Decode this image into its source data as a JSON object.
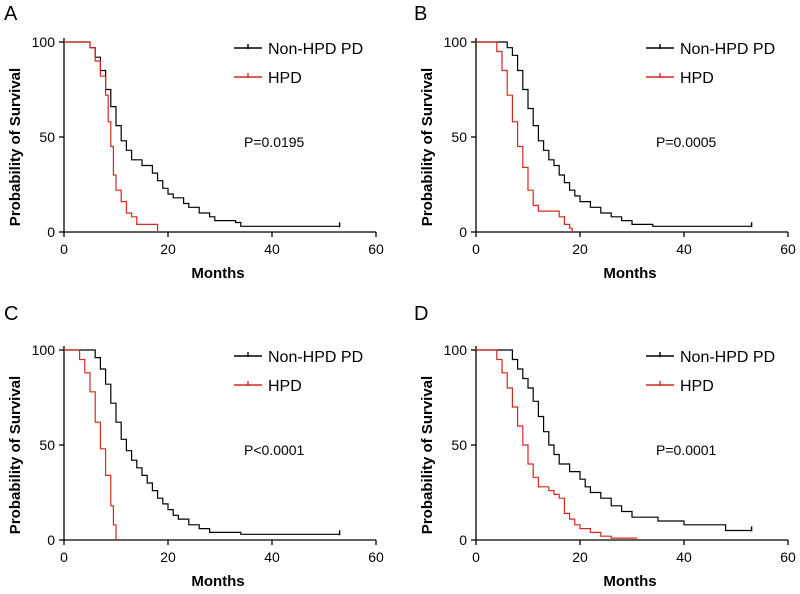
{
  "chart_data": [
    {
      "type": "line",
      "panel": "A",
      "title": "",
      "xlabel": "Months",
      "ylabel": "Probability of Survival",
      "xlim": [
        0,
        60
      ],
      "ylim": [
        0,
        100
      ],
      "xticks": [
        "0",
        "20",
        "40",
        "60"
      ],
      "yticks": [
        "0",
        "50",
        "100"
      ],
      "annotation": "P=0.0195",
      "legend_position": "top-right",
      "series": [
        {
          "name": "Non-HPD PD",
          "color": "#000000",
          "censor_end": true,
          "points": [
            [
              0,
              100
            ],
            [
              4,
              100
            ],
            [
              5,
              97
            ],
            [
              6,
              92
            ],
            [
              7,
              85
            ],
            [
              8,
              75
            ],
            [
              9,
              66
            ],
            [
              10,
              56
            ],
            [
              11,
              48
            ],
            [
              12,
              43
            ],
            [
              13,
              38
            ],
            [
              15,
              35
            ],
            [
              17,
              31
            ],
            [
              18,
              27
            ],
            [
              19,
              23
            ],
            [
              20,
              20
            ],
            [
              21,
              18
            ],
            [
              23,
              15
            ],
            [
              24,
              13
            ],
            [
              26,
              10
            ],
            [
              28,
              8
            ],
            [
              29,
              6
            ],
            [
              33,
              5
            ],
            [
              34,
              3
            ],
            [
              53,
              3
            ]
          ]
        },
        {
          "name": "HPD",
          "color": "#d42a20",
          "censor_end": false,
          "points": [
            [
              0,
              100
            ],
            [
              3,
              100
            ],
            [
              5,
              97
            ],
            [
              6,
              90
            ],
            [
              7,
              82
            ],
            [
              8,
              72
            ],
            [
              8.5,
              58
            ],
            [
              9,
              45
            ],
            [
              9.5,
              30
            ],
            [
              10,
              22
            ],
            [
              11,
              16
            ],
            [
              12,
              10
            ],
            [
              13,
              8
            ],
            [
              14,
              4
            ],
            [
              18,
              4
            ],
            [
              18,
              0
            ]
          ]
        }
      ]
    },
    {
      "type": "line",
      "panel": "B",
      "title": "",
      "xlabel": "Months",
      "ylabel": "Probability of Survival",
      "xlim": [
        0,
        60
      ],
      "ylim": [
        0,
        100
      ],
      "xticks": [
        "0",
        "20",
        "40",
        "60"
      ],
      "yticks": [
        "0",
        "50",
        "100"
      ],
      "annotation": "P=0.0005",
      "legend_position": "top-right",
      "series": [
        {
          "name": "Non-HPD PD",
          "color": "#000000",
          "censor_end": true,
          "points": [
            [
              0,
              100
            ],
            [
              5,
              100
            ],
            [
              6,
              97
            ],
            [
              7,
              93
            ],
            [
              8,
              85
            ],
            [
              9,
              75
            ],
            [
              10,
              65
            ],
            [
              11,
              56
            ],
            [
              12,
              48
            ],
            [
              13,
              43
            ],
            [
              14,
              38
            ],
            [
              15,
              35
            ],
            [
              16,
              30
            ],
            [
              17,
              26
            ],
            [
              18,
              22
            ],
            [
              19,
              19
            ],
            [
              20,
              16
            ],
            [
              22,
              13
            ],
            [
              24,
              10
            ],
            [
              26,
              8
            ],
            [
              28,
              6
            ],
            [
              30,
              4
            ],
            [
              34,
              3
            ],
            [
              53,
              3
            ]
          ]
        },
        {
          "name": "HPD",
          "color": "#d42a20",
          "censor_end": false,
          "points": [
            [
              0,
              100
            ],
            [
              3,
              100
            ],
            [
              4,
              95
            ],
            [
              5,
              85
            ],
            [
              6,
              72
            ],
            [
              7,
              58
            ],
            [
              8,
              45
            ],
            [
              9,
              34
            ],
            [
              10,
              22
            ],
            [
              11,
              14
            ],
            [
              12,
              11
            ],
            [
              15,
              11
            ],
            [
              16,
              8
            ],
            [
              17,
              4
            ],
            [
              18,
              2
            ],
            [
              18.5,
              0
            ]
          ]
        }
      ]
    },
    {
      "type": "line",
      "panel": "C",
      "title": "",
      "xlabel": "Months",
      "ylabel": "Probability of Survival",
      "xlim": [
        0,
        60
      ],
      "ylim": [
        0,
        100
      ],
      "xticks": [
        "0",
        "20",
        "40",
        "60"
      ],
      "yticks": [
        "0",
        "50",
        "100"
      ],
      "annotation": "P<0.0001",
      "legend_position": "top-right",
      "series": [
        {
          "name": "Non-HPD PD",
          "color": "#000000",
          "censor_end": true,
          "points": [
            [
              0,
              100
            ],
            [
              5,
              100
            ],
            [
              6,
              96
            ],
            [
              7,
              90
            ],
            [
              8,
              82
            ],
            [
              9,
              72
            ],
            [
              10,
              62
            ],
            [
              11,
              53
            ],
            [
              12,
              47
            ],
            [
              13,
              42
            ],
            [
              14,
              38
            ],
            [
              15,
              34
            ],
            [
              16,
              30
            ],
            [
              17,
              26
            ],
            [
              18,
              22
            ],
            [
              19,
              19
            ],
            [
              20,
              16
            ],
            [
              21,
              13
            ],
            [
              22,
              11
            ],
            [
              24,
              8
            ],
            [
              26,
              6
            ],
            [
              28,
              4
            ],
            [
              34,
              3
            ],
            [
              53,
              3
            ]
          ]
        },
        {
          "name": "HPD",
          "color": "#d42a20",
          "censor_end": false,
          "points": [
            [
              0,
              100
            ],
            [
              2,
              100
            ],
            [
              3,
              95
            ],
            [
              4,
              88
            ],
            [
              5,
              78
            ],
            [
              6,
              62
            ],
            [
              7,
              48
            ],
            [
              8,
              34
            ],
            [
              9,
              18
            ],
            [
              9.5,
              8
            ],
            [
              10,
              0
            ]
          ]
        }
      ]
    },
    {
      "type": "line",
      "panel": "D",
      "title": "",
      "xlabel": "Months",
      "ylabel": "Probability of Survival",
      "xlim": [
        0,
        60
      ],
      "ylim": [
        0,
        100
      ],
      "xticks": [
        "0",
        "20",
        "40",
        "60"
      ],
      "yticks": [
        "0",
        "50",
        "100"
      ],
      "annotation": "P=0.0001",
      "legend_position": "top-right",
      "series": [
        {
          "name": "Non-HPD PD",
          "color": "#000000",
          "censor_end": true,
          "points": [
            [
              0,
              100
            ],
            [
              6,
              100
            ],
            [
              7,
              95
            ],
            [
              8,
              90
            ],
            [
              9,
              85
            ],
            [
              10,
              80
            ],
            [
              11,
              73
            ],
            [
              12,
              65
            ],
            [
              13,
              57
            ],
            [
              14,
              50
            ],
            [
              15,
              45
            ],
            [
              16,
              40
            ],
            [
              18,
              36
            ],
            [
              20,
              32
            ],
            [
              21,
              28
            ],
            [
              22,
              25
            ],
            [
              24,
              22
            ],
            [
              26,
              18
            ],
            [
              28,
              15
            ],
            [
              30,
              12
            ],
            [
              35,
              10
            ],
            [
              40,
              8
            ],
            [
              48,
              5
            ],
            [
              53,
              5
            ]
          ]
        },
        {
          "name": "HPD",
          "color": "#d42a20",
          "censor_end": false,
          "points": [
            [
              0,
              100
            ],
            [
              3,
              100
            ],
            [
              4,
              95
            ],
            [
              5,
              88
            ],
            [
              6,
              80
            ],
            [
              7,
              70
            ],
            [
              8,
              60
            ],
            [
              9,
              50
            ],
            [
              10,
              40
            ],
            [
              11,
              33
            ],
            [
              12,
              28
            ],
            [
              14,
              26
            ],
            [
              15,
              24
            ],
            [
              16,
              22
            ],
            [
              17,
              14
            ],
            [
              18,
              11
            ],
            [
              19,
              8
            ],
            [
              20,
              6
            ],
            [
              22,
              4
            ],
            [
              24,
              2
            ],
            [
              26,
              1
            ],
            [
              31,
              1
            ]
          ]
        }
      ]
    }
  ]
}
